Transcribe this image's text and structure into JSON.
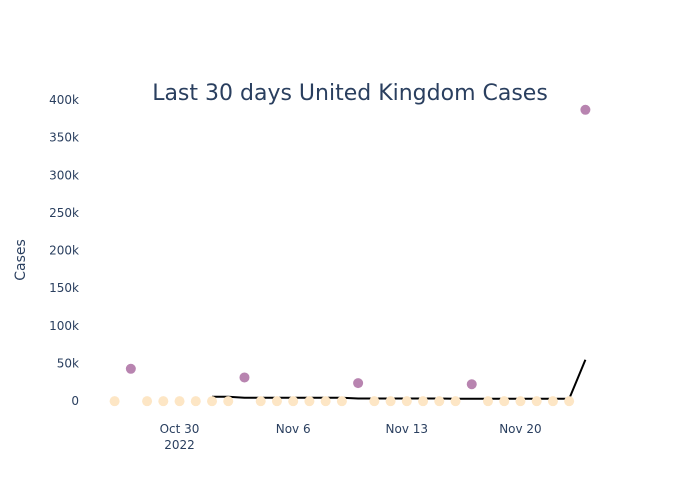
{
  "chart_data": {
    "type": "scatter",
    "title": "Last 30 days United Kingdom Cases",
    "xlabel": "",
    "ylabel": "Cases",
    "ylim": [
      -25000,
      400000
    ],
    "grid": false,
    "x_ticks": [
      {
        "date": "2022-10-30",
        "label": "Oct 30",
        "sublabel": "2022"
      },
      {
        "date": "2022-11-06",
        "label": "Nov 6",
        "sublabel": ""
      },
      {
        "date": "2022-11-13",
        "label": "Nov 13",
        "sublabel": ""
      },
      {
        "date": "2022-11-20",
        "label": "Nov 20",
        "sublabel": ""
      }
    ],
    "y_ticks": [
      {
        "value": 0,
        "label": "0"
      },
      {
        "value": 50000,
        "label": "50k"
      },
      {
        "value": 100000,
        "label": "100k"
      },
      {
        "value": 150000,
        "label": "150k"
      },
      {
        "value": 200000,
        "label": "200k"
      },
      {
        "value": 250000,
        "label": "250k"
      },
      {
        "value": 300000,
        "label": "300k"
      },
      {
        "value": 350000,
        "label": "350k"
      },
      {
        "value": 400000,
        "label": "400k"
      }
    ],
    "x": [
      "2022-10-26",
      "2022-10-27",
      "2022-10-28",
      "2022-10-29",
      "2022-10-30",
      "2022-10-31",
      "2022-11-01",
      "2022-11-02",
      "2022-11-03",
      "2022-11-04",
      "2022-11-05",
      "2022-11-06",
      "2022-11-07",
      "2022-11-08",
      "2022-11-09",
      "2022-11-10",
      "2022-11-11",
      "2022-11-12",
      "2022-11-13",
      "2022-11-14",
      "2022-11-15",
      "2022-11-16",
      "2022-11-17",
      "2022-11-18",
      "2022-11-19",
      "2022-11-20",
      "2022-11-21",
      "2022-11-22",
      "2022-11-23",
      "2022-11-24"
    ],
    "series": [
      {
        "values": [
          0,
          43000,
          0,
          0,
          0,
          0,
          0,
          0,
          31500,
          0,
          0,
          0,
          0,
          0,
          0,
          24000,
          0,
          0,
          0,
          0,
          0,
          0,
          22500,
          0,
          0,
          0,
          0,
          0,
          0,
          387000
        ],
        "colors": [
          "#fde6c5",
          "#b884b0",
          "#fde6c5",
          "#fde6c5",
          "#fde6c5",
          "#fde6c5",
          "#fde6c5",
          "#fde6c5",
          "#b884b0",
          "#fde6c5",
          "#fde6c5",
          "#fde6c5",
          "#fde6c5",
          "#fde6c5",
          "#fde6c5",
          "#b884b0",
          "#fde6c5",
          "#fde6c5",
          "#fde6c5",
          "#fde6c5",
          "#fde6c5",
          "#fde6c5",
          "#b884b0",
          "#fde6c5",
          "#fde6c5",
          "#fde6c5",
          "#fde6c5",
          "#fde6c5",
          "#fde6c5",
          "#b884b0"
        ]
      },
      {
        "x": [
          "2022-11-01",
          "2022-11-02",
          "2022-11-03",
          "2022-11-04",
          "2022-11-05",
          "2022-11-06",
          "2022-11-07",
          "2022-11-08",
          "2022-11-09",
          "2022-11-10",
          "2022-11-11",
          "2022-11-12",
          "2022-11-13",
          "2022-11-14",
          "2022-11-15",
          "2022-11-16",
          "2022-11-17",
          "2022-11-18",
          "2022-11-19",
          "2022-11-20",
          "2022-11-21",
          "2022-11-22",
          "2022-11-23",
          "2022-11-24"
        ],
        "values": [
          6000,
          6000,
          4500,
          4500,
          4500,
          4500,
          4500,
          4500,
          4500,
          3500,
          3500,
          3500,
          3500,
          3500,
          3500,
          3200,
          3200,
          3200,
          3200,
          3200,
          3200,
          3200,
          3200,
          55000
        ],
        "color": "#000000"
      }
    ]
  }
}
